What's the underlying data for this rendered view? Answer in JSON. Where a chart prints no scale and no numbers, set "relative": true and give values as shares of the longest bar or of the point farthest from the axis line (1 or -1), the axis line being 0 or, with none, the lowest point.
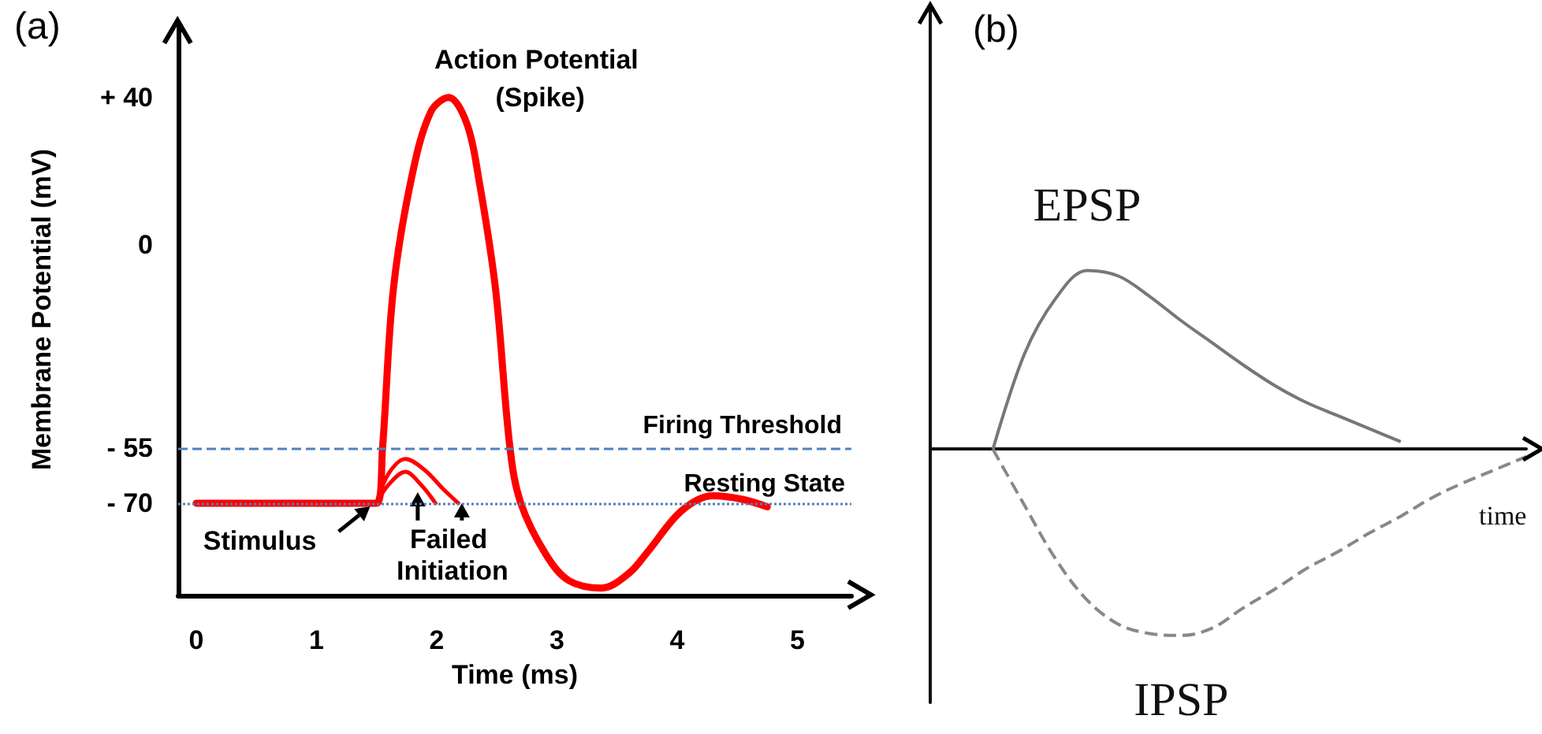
{
  "chart_data": [
    {
      "type": "line",
      "title": "(a)",
      "xlabel": "Time (ms)",
      "ylabel": "Membrane Potential (mV)",
      "xlim": [
        -0.15,
        5.45
      ],
      "xticks": [
        0,
        1,
        2,
        3,
        4,
        5
      ],
      "ylim": [
        -95,
        60
      ],
      "yticks": [
        {
          "value": -70,
          "label": "- 70"
        },
        {
          "value": -55,
          "label": "- 55"
        },
        0,
        {
          "value": 40,
          "label": "+ 40"
        }
      ],
      "grid": false,
      "line_style": "solid",
      "series": [
        {
          "color": "#ff0000",
          "x": [
            0,
            1.5,
            1.55,
            1.64,
            1.79,
            1.95,
            2.1,
            2.25,
            2.35,
            2.49,
            2.61,
            2.7,
            2.91,
            3.1,
            3.37,
            3.6,
            3.76,
            4.04,
            4.3,
            4.55,
            4.75
          ],
          "values": [
            -70,
            -70,
            -55,
            -12,
            18,
            36,
            40,
            33,
            18,
            -12,
            -55,
            -70,
            -84,
            -91,
            -93,
            -89,
            -83,
            -72,
            -68,
            -69,
            -71
          ]
        },
        {
          "color": "#ff0000",
          "x": [
            1.5,
            1.6,
            1.74,
            1.9,
            2.05,
            2.18
          ],
          "values": [
            -70,
            -62,
            -58,
            -61,
            -66,
            -70
          ]
        },
        {
          "color": "#ff0000",
          "x": [
            1.5,
            1.6,
            1.74,
            1.87,
            1.99
          ],
          "values": [
            -70,
            -65,
            -61.5,
            -65,
            -70
          ]
        }
      ],
      "ref_lines": [
        {
          "axis": "y",
          "value": -55,
          "label": "Firing Threshold",
          "color": "#4f81bd",
          "line_style": "dashed"
        },
        {
          "axis": "y",
          "value": -70,
          "label": "Resting State",
          "color": "#4f81bd",
          "line_style": "dotted"
        }
      ],
      "annotations": [
        {
          "text": "Action Potential (Spike)",
          "x": 2.1,
          "y": 40
        },
        {
          "text": "Stimulus",
          "x": 1.5,
          "y": -70
        },
        {
          "text": "Failed Initiation",
          "x": 2,
          "y": -70
        }
      ]
    },
    {
      "type": "line",
      "title": "(b)",
      "xlabel": "time",
      "relative": true,
      "categories": [
        null,
        null,
        null,
        null,
        null,
        null,
        null,
        null,
        null,
        null,
        null,
        null,
        null,
        null,
        null,
        null,
        null,
        null,
        null,
        null
      ],
      "series": [
        {
          "name": "EPSP",
          "color": "#777777",
          "line_style": "solid",
          "values": [
            null,
            null,
            0,
            0.51,
            0.81,
            0.96,
            0.93,
            0.82,
            0.69,
            0.57,
            0.45,
            0.34,
            0.25,
            0.18,
            0.11,
            0.04,
            null,
            null,
            null,
            null
          ]
        },
        {
          "name": "IPSP",
          "color": "#888888",
          "line_style": "dashed",
          "values": [
            null,
            null,
            0,
            -0.3,
            -0.59,
            -0.81,
            -0.94,
            -0.99,
            -1,
            -0.96,
            -0.85,
            -0.75,
            -0.64,
            -0.55,
            -0.45,
            -0.36,
            -0.26,
            -0.18,
            -0.11,
            -0.04
          ]
        }
      ]
    }
  ]
}
